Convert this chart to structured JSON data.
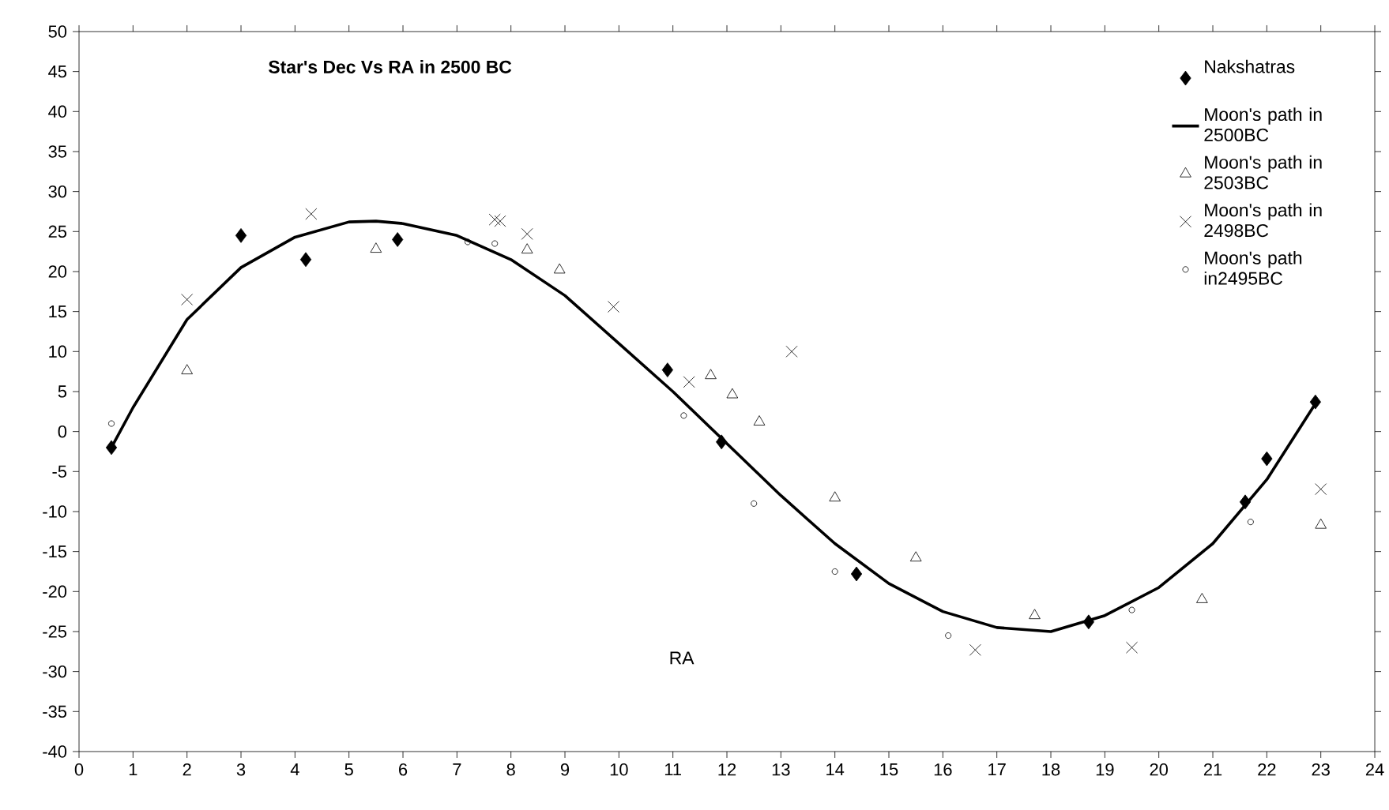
{
  "chart_data": {
    "type": "scatter",
    "title": "Star's Dec Vs RA in 2500 BC",
    "xlabel": "RA",
    "xlim": [
      0,
      24
    ],
    "xticks": [
      0,
      1,
      2,
      3,
      4,
      5,
      6,
      7,
      8,
      9,
      10,
      11,
      12,
      13,
      14,
      15,
      16,
      17,
      18,
      19,
      20,
      21,
      22,
      23,
      24
    ],
    "ylim": [
      -40,
      50
    ],
    "yticks": [
      -40,
      -35,
      -30,
      -25,
      -20,
      -15,
      -10,
      -5,
      0,
      5,
      10,
      15,
      20,
      25,
      30,
      35,
      40,
      45,
      50
    ],
    "legend": "top right",
    "grid": false,
    "series": [
      {
        "name": "Nakshatras",
        "color": "#000000",
        "marker": "diamond",
        "x": [
          0.6,
          3.0,
          4.2,
          5.9,
          10.9,
          11.9,
          14.4,
          18.7,
          21.6,
          22.0,
          22.9
        ],
        "values": [
          -2,
          24.5,
          21.5,
          24,
          7.7,
          -1.3,
          -17.8,
          -23.8,
          -8.8,
          -3.4,
          3.7
        ]
      },
      {
        "name": "Moon's path in 2500BC",
        "type": "line",
        "color": "#000000",
        "marker": "none",
        "x": [
          0.6,
          1,
          2,
          3,
          4,
          5,
          5.5,
          6,
          7,
          8,
          9,
          10,
          11,
          12,
          13,
          14,
          15,
          16,
          17,
          18,
          19,
          20,
          21,
          22,
          22.9
        ],
        "values": [
          -2,
          3,
          14,
          20.5,
          24.3,
          26.2,
          26.3,
          26,
          24.5,
          21.5,
          17,
          11,
          5,
          -1.5,
          -8,
          -14,
          -19,
          -22.5,
          -24.5,
          -25,
          -23,
          -19.5,
          -14,
          -6,
          3.5
        ]
      },
      {
        "name": "Moon's path in 2503BC",
        "color": "#000000",
        "marker": "triangle",
        "x": [
          2.0,
          5.5,
          8.3,
          8.9,
          11.7,
          12.1,
          12.6,
          14.0,
          15.5,
          17.7,
          20.8,
          23.0
        ],
        "values": [
          7.6,
          22.8,
          22.7,
          20.2,
          7,
          4.6,
          1.2,
          -8.3,
          -15.8,
          -23,
          -21,
          -11.7
        ]
      },
      {
        "name": "Moon's path in 2498BC",
        "color": "#000000",
        "marker": "cross",
        "x": [
          2.0,
          4.3,
          7.7,
          7.8,
          8.3,
          9.9,
          11.3,
          13.2,
          16.6,
          19.5,
          23.0
        ],
        "values": [
          16.5,
          27.2,
          26.5,
          26.3,
          24.7,
          15.6,
          6.2,
          10,
          -27.3,
          -27,
          -7.2
        ]
      },
      {
        "name": "Moon's path in2495BC",
        "color": "#000000",
        "marker": "circle",
        "x": [
          0.6,
          7.2,
          7.7,
          11.2,
          12.5,
          14.0,
          16.1,
          19.5,
          21.7
        ],
        "values": [
          1,
          23.7,
          23.5,
          2,
          -9,
          -17.5,
          -25.5,
          -22.3,
          -11.3
        ]
      }
    ]
  }
}
